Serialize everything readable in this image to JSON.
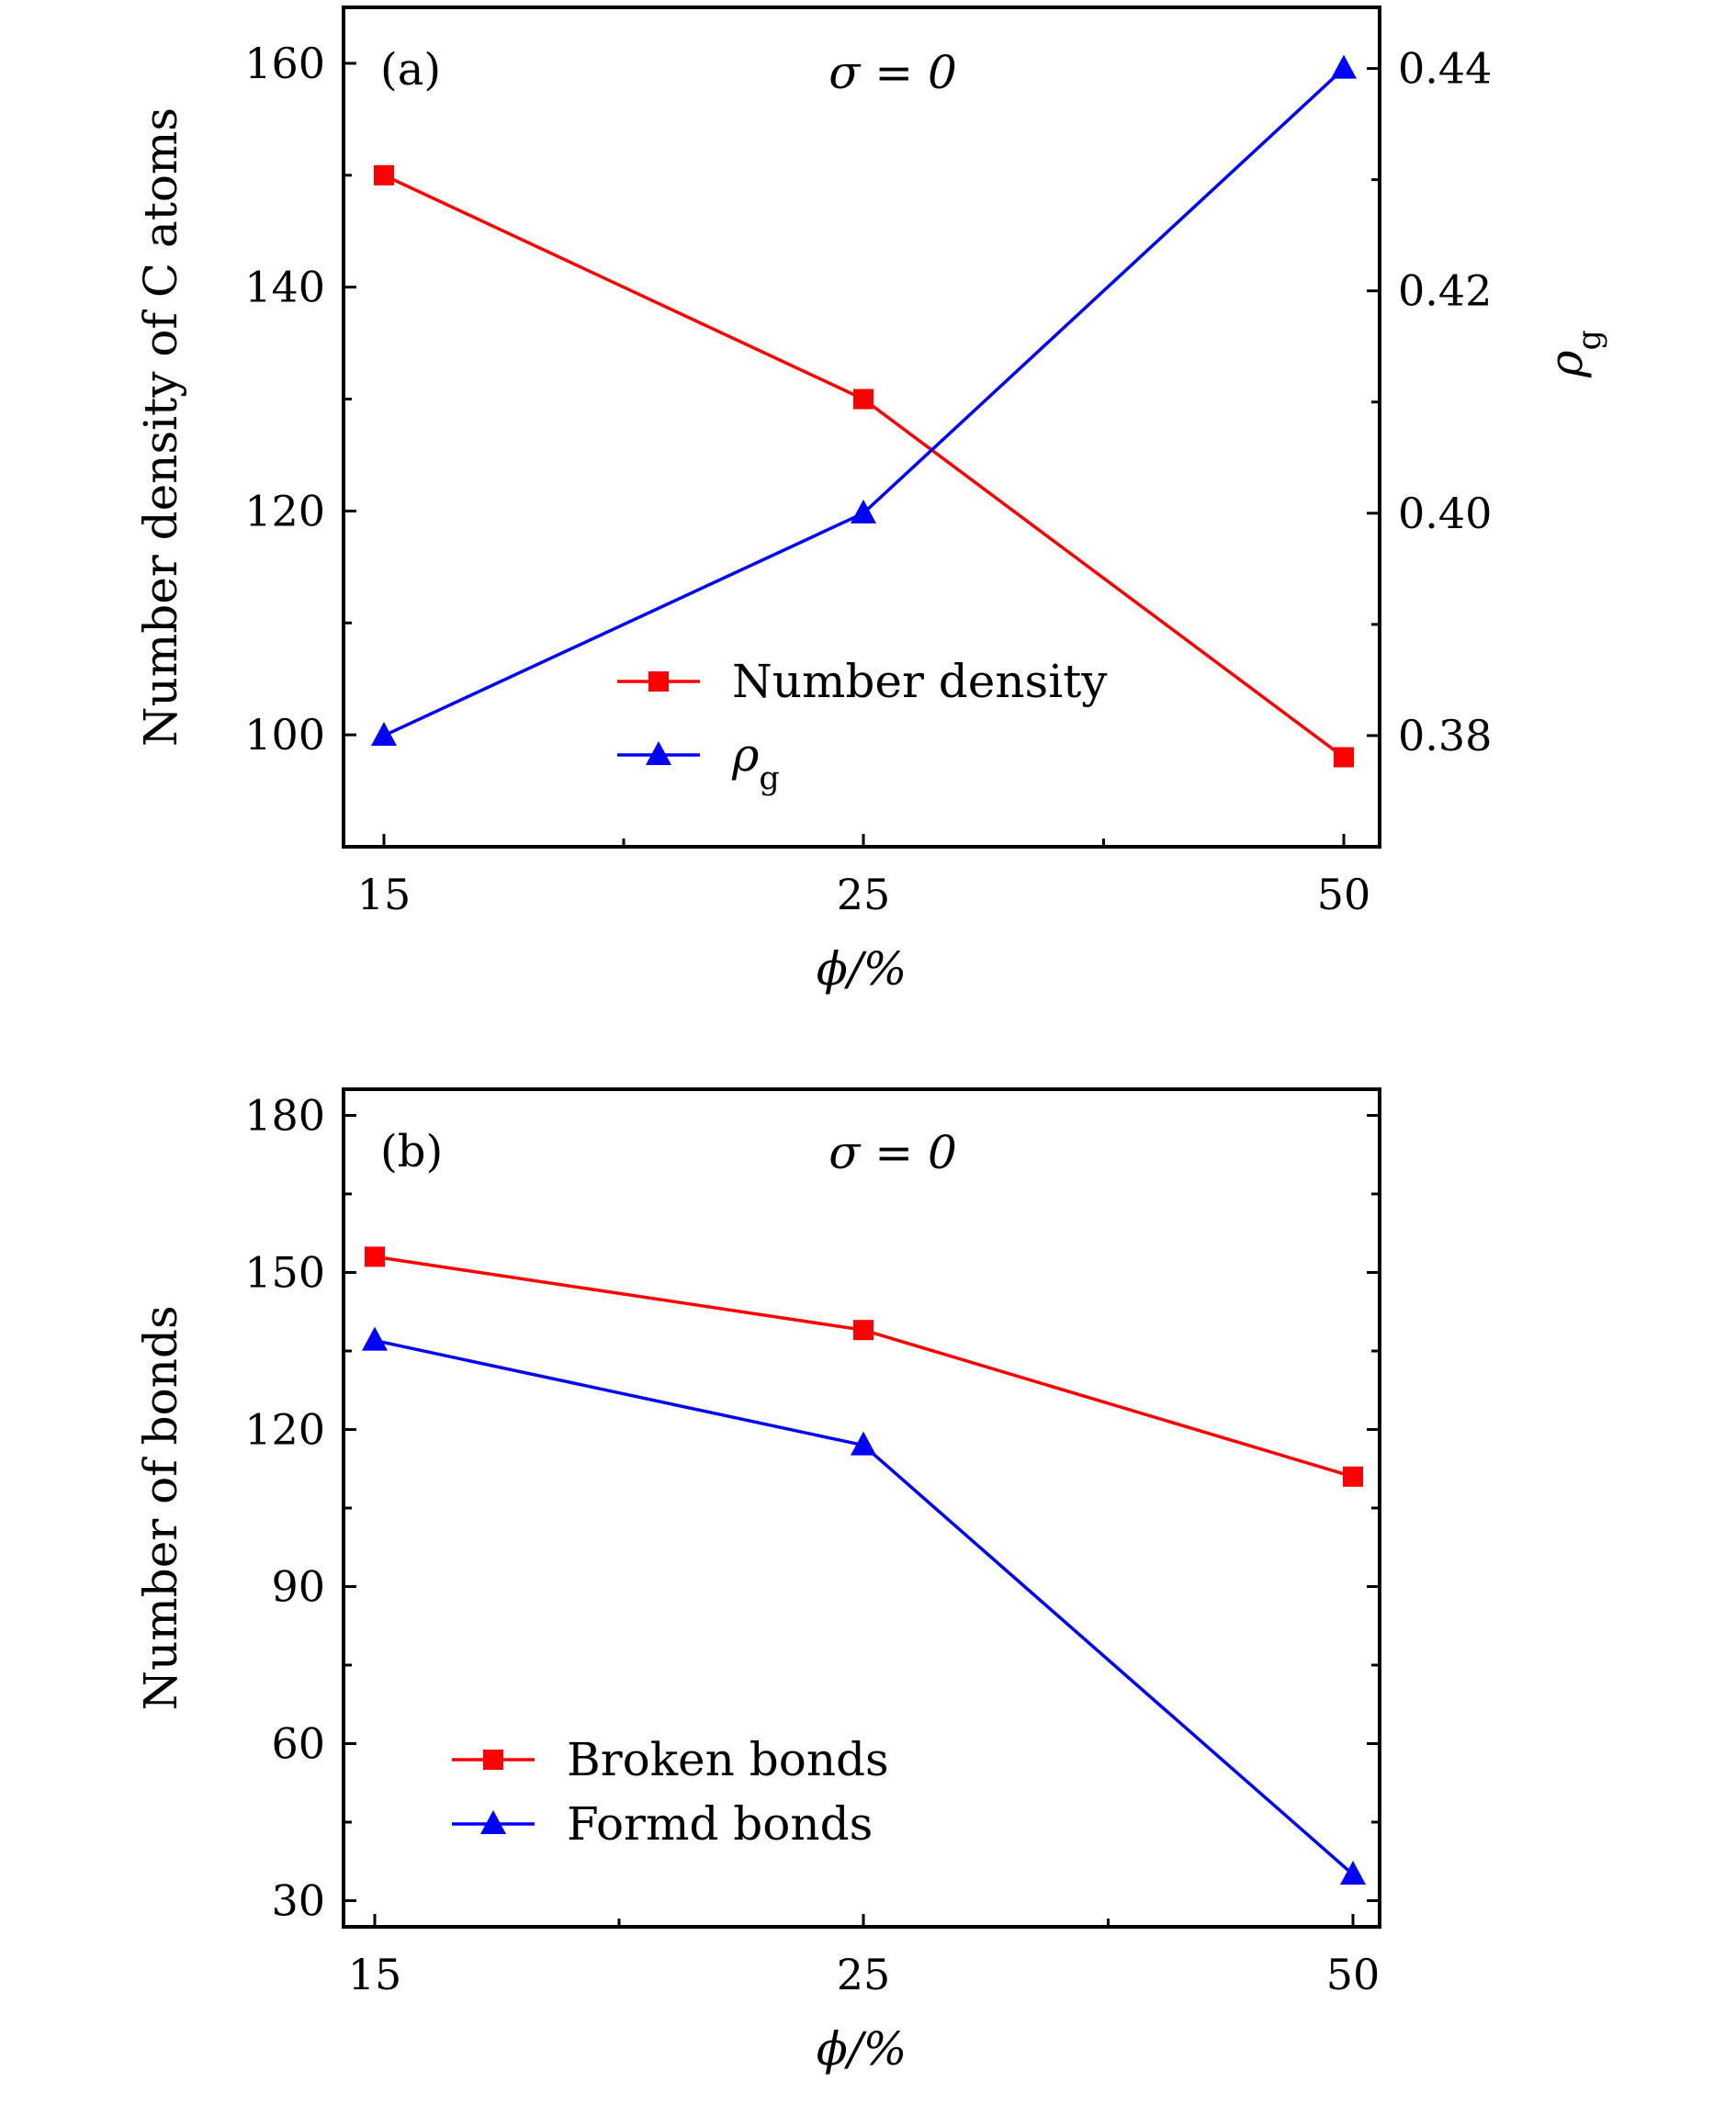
{
  "chart_data": [
    {
      "type": "line",
      "panel_label": "(a)",
      "annotation": "σ = 0",
      "x_categories": [
        "15",
        "25",
        "50"
      ],
      "xlabel": "ϕ/%",
      "ylabel": "Number density of C atoms",
      "ylim": [
        90,
        165
      ],
      "yticks": [
        "100",
        "120",
        "140",
        "160"
      ],
      "y2label": "ρg",
      "y2label_main": "ρ",
      "y2label_sub": "g",
      "y2lim": [
        0.37,
        0.4455
      ],
      "y2ticks": [
        "0.38",
        "0.40",
        "0.42",
        "0.44"
      ],
      "legend_position": "center-right",
      "series": [
        {
          "name": "Number density",
          "name_main": "Number density",
          "name_sub": "",
          "axis": "left",
          "marker": "square",
          "color": "#ff0000",
          "values": [
            150,
            130,
            98
          ]
        },
        {
          "name": "ρg",
          "name_main": "ρ",
          "name_sub": "g",
          "axis": "right",
          "marker": "triangle",
          "color": "#0000ff",
          "values": [
            0.38,
            0.4,
            0.44
          ]
        }
      ]
    },
    {
      "type": "line",
      "panel_label": "(b)",
      "annotation": "σ = 0",
      "x_categories": [
        "15",
        "25",
        "50"
      ],
      "xlabel": "ϕ/%",
      "ylabel": "Number of bonds",
      "ylim": [
        25,
        185
      ],
      "yticks": [
        "30",
        "60",
        "90",
        "120",
        "150",
        "180"
      ],
      "legend_position": "lower-left",
      "series": [
        {
          "name": "Broken bonds",
          "name_main": "Broken bonds",
          "name_sub": "",
          "axis": "left",
          "marker": "square",
          "color": "#ff0000",
          "values": [
            153,
            139,
            111
          ]
        },
        {
          "name": "Formd bonds",
          "name_main": "Formd bonds",
          "name_sub": "",
          "axis": "left",
          "marker": "triangle",
          "color": "#0000ff",
          "values": [
            137,
            117,
            35
          ]
        }
      ]
    }
  ]
}
